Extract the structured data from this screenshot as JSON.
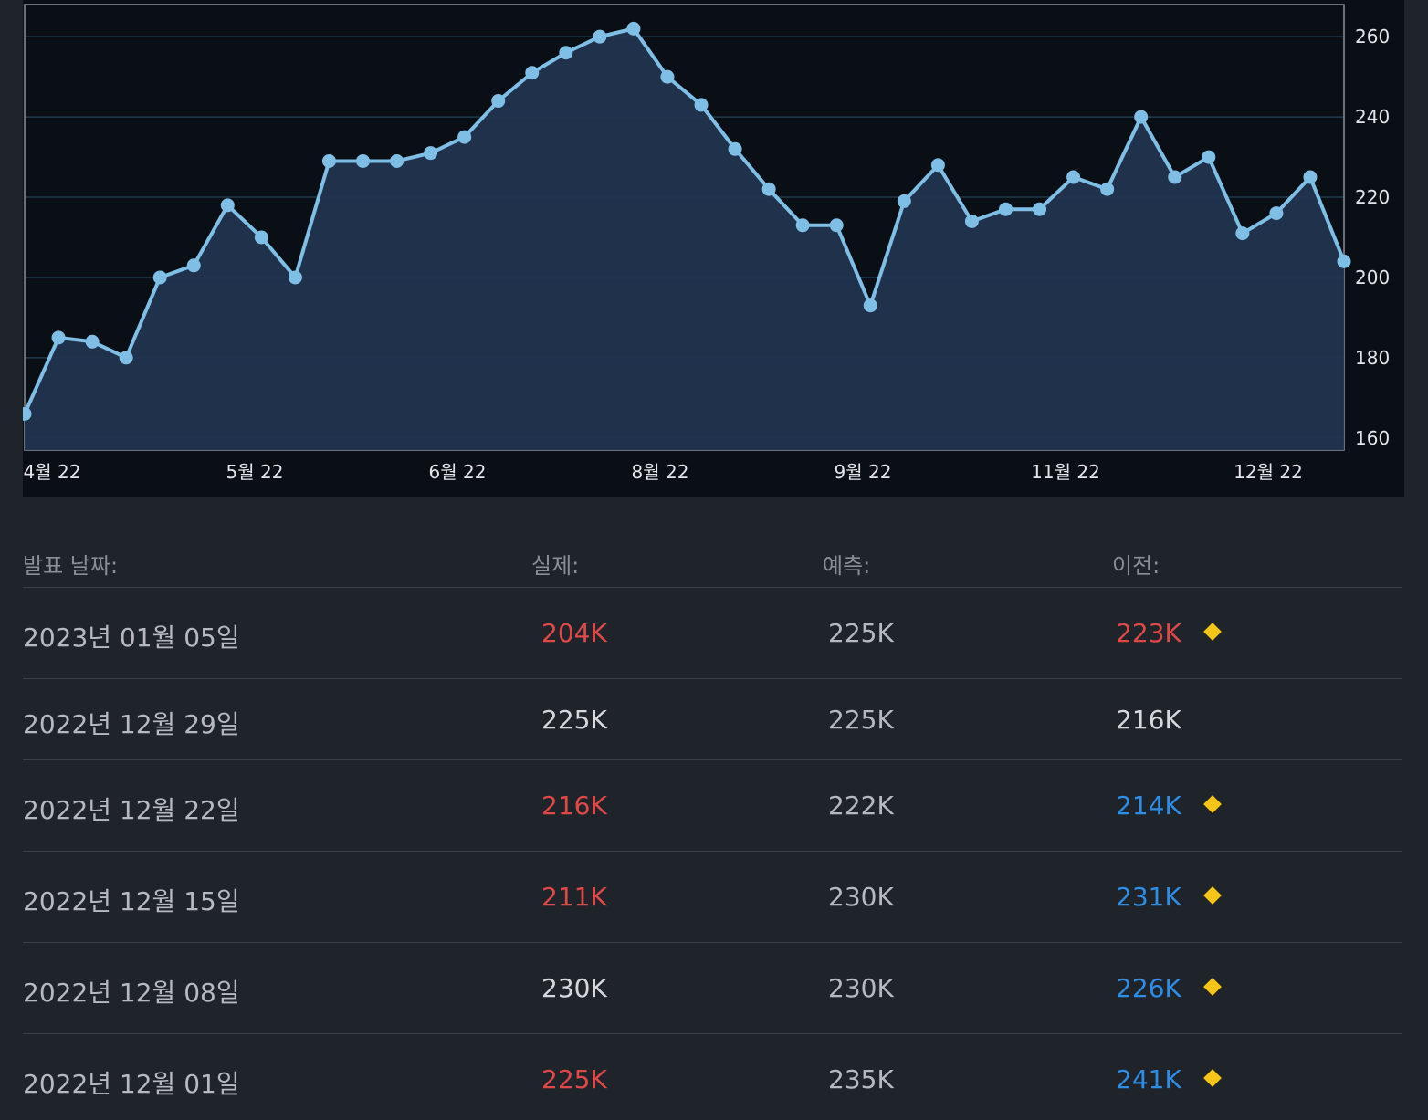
{
  "chart_data": {
    "type": "area",
    "x_labels": [
      "4월 22",
      "5월 22",
      "6월 22",
      "8월 22",
      "9월 22",
      "11월 22",
      "12월 22"
    ],
    "y_ticks": [
      160,
      180,
      200,
      220,
      240,
      260
    ],
    "ylim": [
      157,
      268
    ],
    "values": [
      166,
      185,
      184,
      180,
      200,
      203,
      218,
      210,
      200,
      229,
      229,
      229,
      231,
      235,
      244,
      251,
      256,
      260,
      262,
      250,
      243,
      232,
      222,
      213,
      213,
      193,
      219,
      228,
      214,
      217,
      217,
      225,
      222,
      240,
      225,
      230,
      211,
      216,
      225,
      204
    ],
    "colors": {
      "line": "#7fbfe6",
      "fill": "#22344f",
      "grid": "#1f3a4c",
      "marker": "#7fbfe6"
    },
    "grid": true,
    "legend": "none"
  },
  "table": {
    "headers": {
      "date": "발표 날짜:",
      "actual": "실제:",
      "forecast": "예측:",
      "previous": "이전:"
    },
    "rows": [
      {
        "date": "2023년 01월 05일",
        "actual": "204K",
        "actual_status": "neg",
        "forecast": "225K",
        "previous": "223K",
        "previous_status": "neg",
        "revised": true
      },
      {
        "date": "2022년 12월 29일",
        "actual": "225K",
        "actual_status": "neutral",
        "forecast": "225K",
        "previous": "216K",
        "previous_status": "neutral",
        "revised": false
      },
      {
        "date": "2022년 12월 22일",
        "actual": "216K",
        "actual_status": "neg",
        "forecast": "222K",
        "previous": "214K",
        "previous_status": "pos",
        "revised": true
      },
      {
        "date": "2022년 12월 15일",
        "actual": "211K",
        "actual_status": "neg",
        "forecast": "230K",
        "previous": "231K",
        "previous_status": "pos",
        "revised": true
      },
      {
        "date": "2022년 12월 08일",
        "actual": "230K",
        "actual_status": "neutral",
        "forecast": "230K",
        "previous": "226K",
        "previous_status": "pos",
        "revised": true
      },
      {
        "date": "2022년 12월 01일",
        "actual": "225K",
        "actual_status": "neg",
        "forecast": "235K",
        "previous": "241K",
        "previous_status": "pos",
        "revised": true
      }
    ],
    "revised_icon": "diamond-icon"
  }
}
